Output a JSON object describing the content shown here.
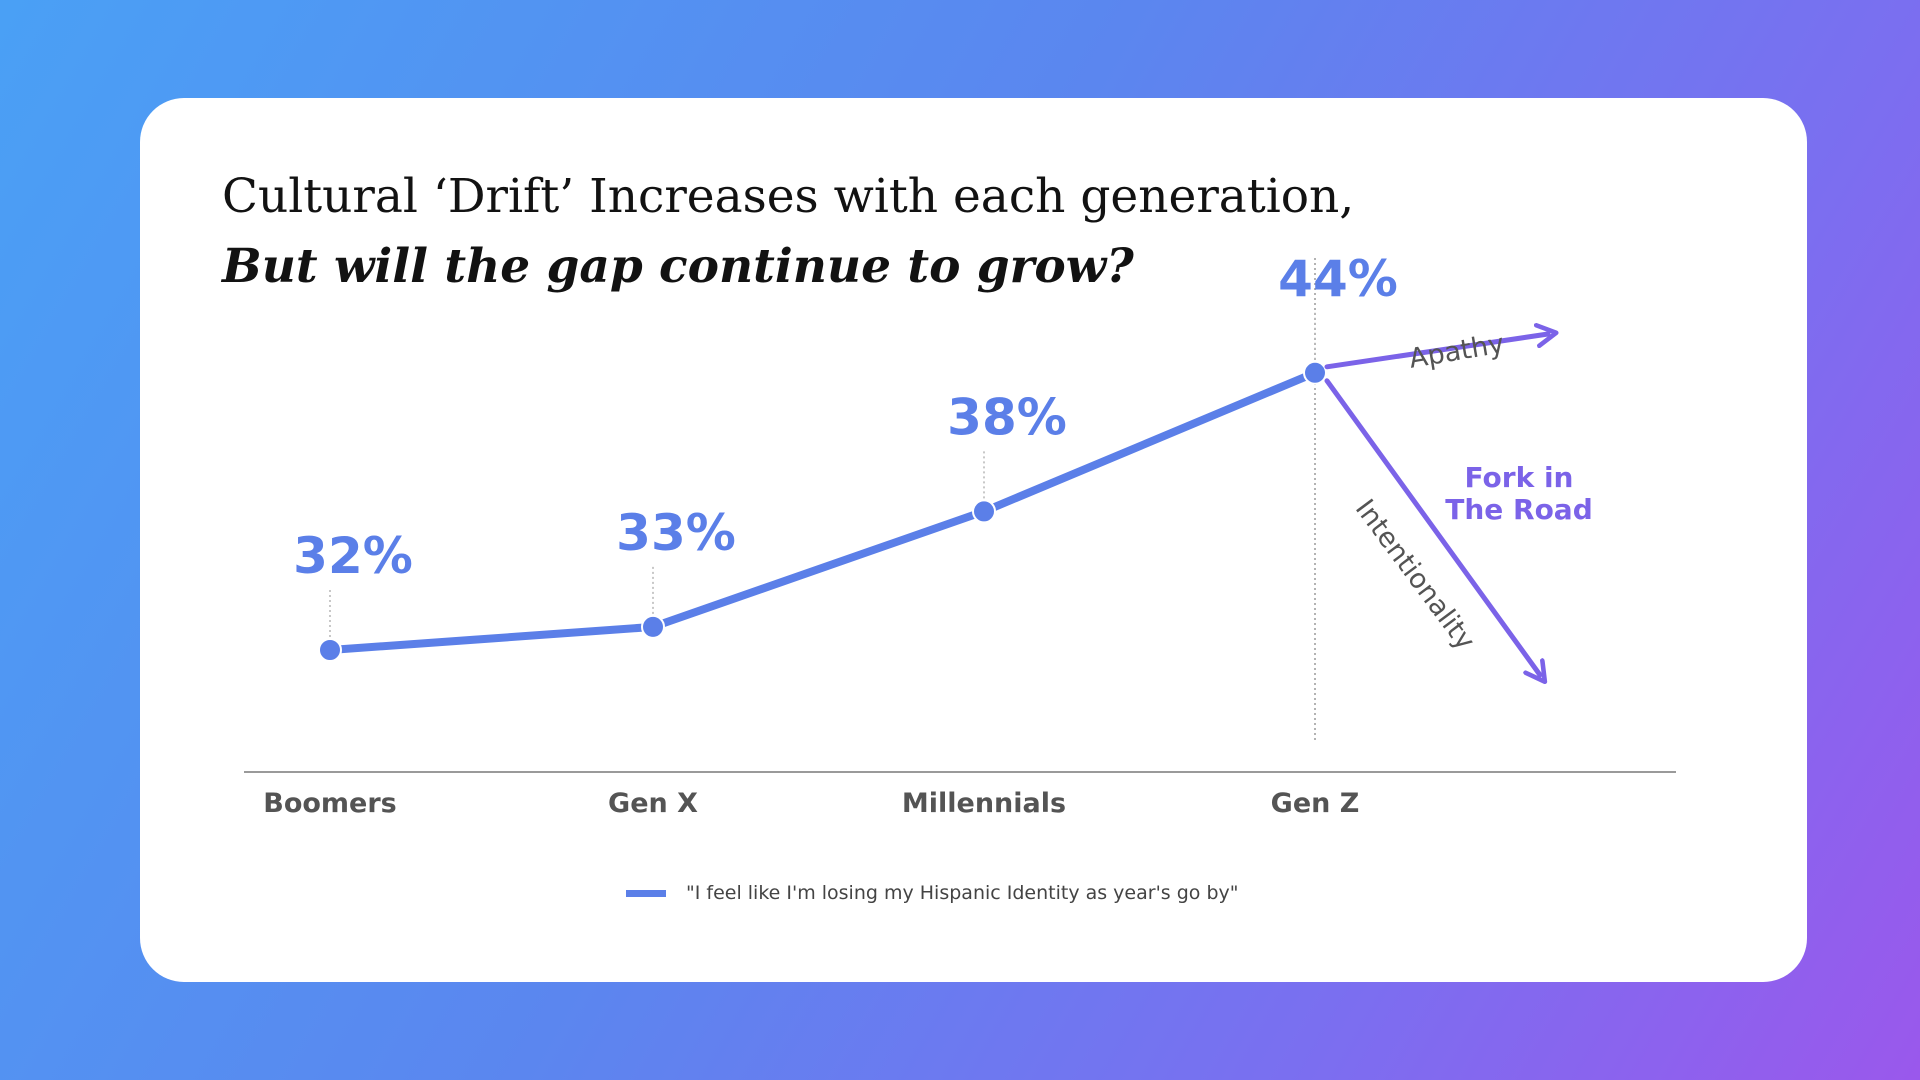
{
  "title": "Cultural ‘Drift’ Increases with each generation,",
  "subtitle": "But will the gap continue to grow?",
  "chart_data": {
    "type": "line",
    "categories": [
      "Boomers",
      "Gen X",
      "Millennials",
      "Gen Z"
    ],
    "series": [
      {
        "name": "\"I feel like I'm losing my Hispanic Identity as year's go by\"",
        "values": [
          32,
          33,
          38,
          44
        ],
        "value_labels": [
          "32%",
          "33%",
          "38%",
          "44%"
        ]
      }
    ],
    "branches": [
      {
        "label": "Apathy",
        "direction": "up"
      },
      {
        "label": "Intentionality",
        "direction": "down"
      }
    ],
    "annotation": [
      "Fork in",
      "The Road"
    ],
    "legend": "\"I feel like I'm losing my Hispanic Identity as year's go by\"",
    "legend_position": "bottom-center",
    "grid": false,
    "colors": {
      "line": "#5b7fe8",
      "branch": "#7b63e8"
    }
  }
}
